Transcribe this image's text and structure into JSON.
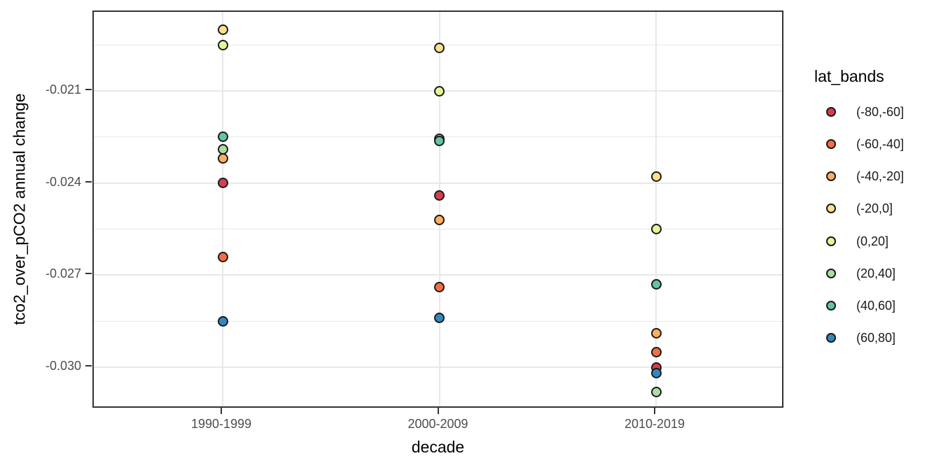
{
  "chart_data": {
    "type": "scatter",
    "xlabel": "decade",
    "ylabel": "tco2_over_pCO2 annual change",
    "legend_title": "lat_bands",
    "legend_position": "right",
    "grid": true,
    "categories": [
      "1990-1999",
      "2000-2009",
      "2010-2019"
    ],
    "y_ticks": [
      -0.021,
      -0.024,
      -0.027,
      -0.03
    ],
    "y_minor_ticks": [
      -0.0195,
      -0.0225,
      -0.0255,
      -0.0285
    ],
    "ylim": [
      -0.031367,
      -0.018425
    ],
    "series": [
      {
        "name": "(-80,-60]",
        "color": "#d53e4f",
        "values": [
          -0.024,
          -0.0244,
          -0.03
        ]
      },
      {
        "name": "(-60,-40]",
        "color": "#f46d43",
        "values": [
          -0.0264,
          -0.0274,
          -0.0295
        ]
      },
      {
        "name": "(-40,-20]",
        "color": "#fdae61",
        "values": [
          -0.0232,
          -0.0252,
          -0.0289
        ]
      },
      {
        "name": "(-20,0]",
        "color": "#fee08b",
        "values": [
          -0.019,
          -0.0196,
          -0.0238
        ]
      },
      {
        "name": "(0,20]",
        "color": "#e6f598",
        "values": [
          -0.0195,
          -0.021,
          -0.0255
        ]
      },
      {
        "name": "(20,40]",
        "color": "#abdda4",
        "values": [
          -0.0229,
          -0.02255,
          -0.0308
        ]
      },
      {
        "name": "(40,60]",
        "color": "#66c2a5",
        "values": [
          -0.0225,
          -0.02262,
          -0.0273
        ]
      },
      {
        "name": "(60,80]",
        "color": "#3288bd",
        "values": [
          -0.0285,
          -0.0284,
          -0.0302
        ]
      }
    ]
  },
  "colors": {
    "panel_border": "#333333",
    "gridline": "#e8e8e8",
    "tick_text": "#4d4d4d",
    "title_text": "#000000",
    "point_stroke": "#1a1a1a"
  }
}
